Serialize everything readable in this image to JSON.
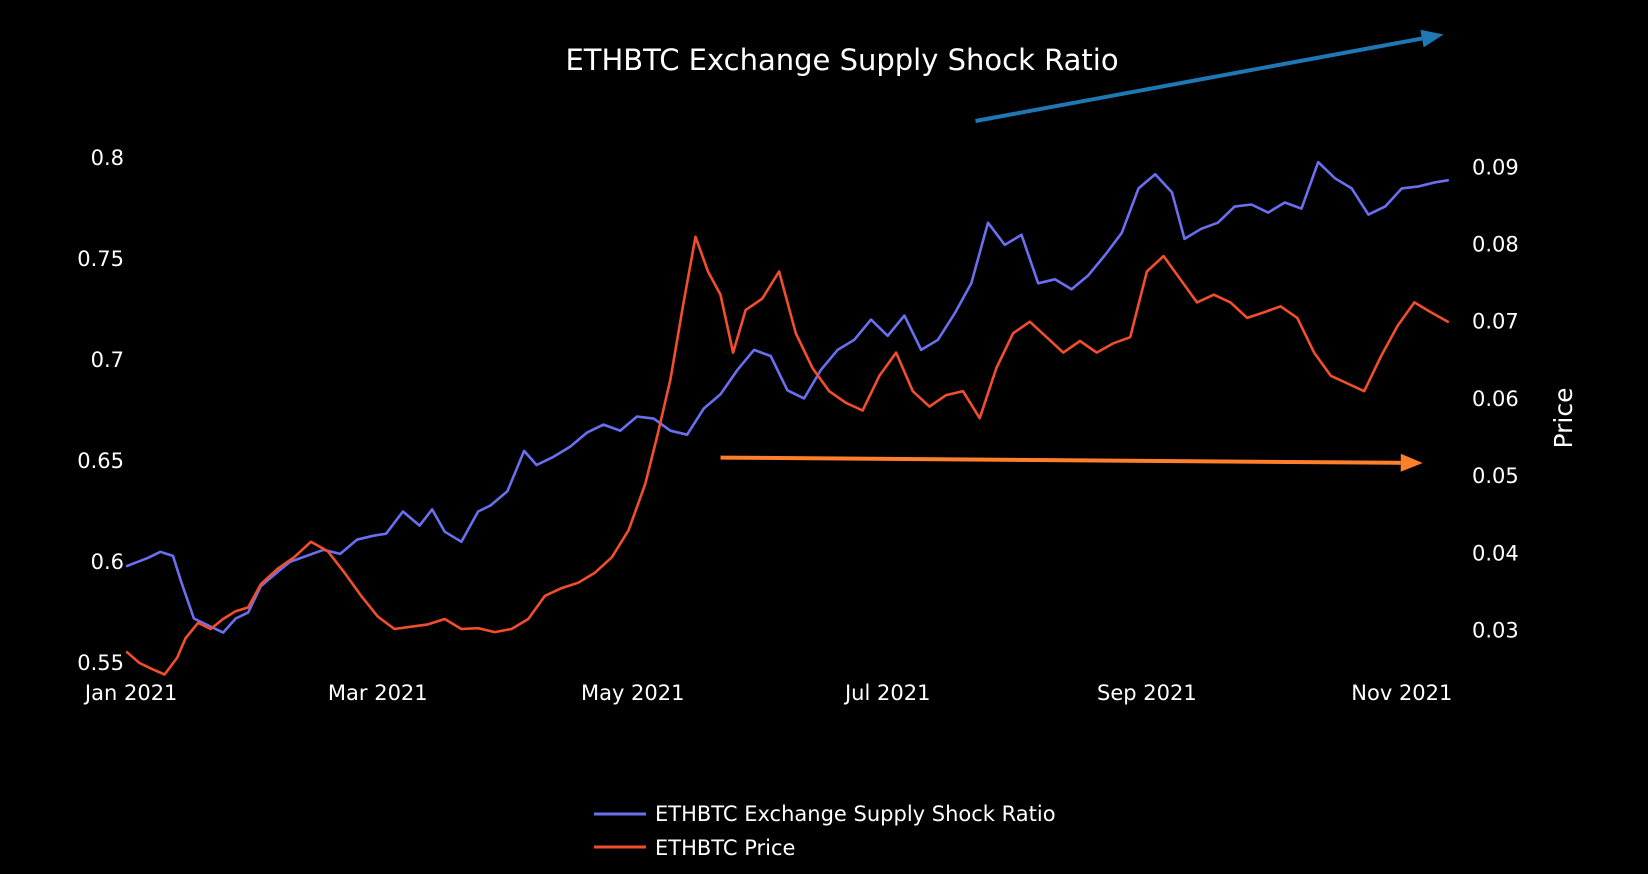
{
  "chart_data": {
    "type": "line",
    "title": "ETHBTC Exchange Supply Shock Ratio",
    "x_ticks": [
      "Jan 2021",
      "Mar 2021",
      "May 2021",
      "Jul 2021",
      "Sep 2021",
      "Nov 2021"
    ],
    "x_tick_dates": [
      "2021-01-01",
      "2021-03-01",
      "2021-05-01",
      "2021-07-01",
      "2021-09-01",
      "2021-11-01"
    ],
    "xlim": [
      "2020-12-31",
      "2021-11-13"
    ],
    "y_left": {
      "label": "",
      "ticks": [
        "0.55",
        "0.6",
        "0.65",
        "0.7",
        "0.75",
        "0.8"
      ],
      "ylim": [
        0.545,
        0.805
      ]
    },
    "y_right": {
      "label": "Price",
      "ticks": [
        "0.03",
        "0.04",
        "0.05",
        "0.06",
        "0.07",
        "0.08",
        "0.09"
      ],
      "ylim": [
        0.0245,
        0.0925
      ]
    },
    "grid": false,
    "legend_position": "bottom-center",
    "series": [
      {
        "name": "ETHBTC Exchange Supply Shock Ratio",
        "axis": "left",
        "color": "#6a6ff0",
        "x": [
          "2020-12-31",
          "2021-01-05",
          "2021-01-08",
          "2021-01-11",
          "2021-01-13",
          "2021-01-16",
          "2021-01-20",
          "2021-01-23",
          "2021-01-26",
          "2021-01-29",
          "2021-02-01",
          "2021-02-05",
          "2021-02-08",
          "2021-02-12",
          "2021-02-16",
          "2021-02-20",
          "2021-02-24",
          "2021-02-28",
          "2021-03-03",
          "2021-03-07",
          "2021-03-11",
          "2021-03-14",
          "2021-03-17",
          "2021-03-21",
          "2021-03-25",
          "2021-03-28",
          "2021-04-01",
          "2021-04-05",
          "2021-04-08",
          "2021-04-12",
          "2021-04-16",
          "2021-04-20",
          "2021-04-24",
          "2021-04-28",
          "2021-05-02",
          "2021-05-06",
          "2021-05-10",
          "2021-05-14",
          "2021-05-18",
          "2021-05-22",
          "2021-05-26",
          "2021-05-30",
          "2021-06-03",
          "2021-06-07",
          "2021-06-11",
          "2021-06-15",
          "2021-06-19",
          "2021-06-23",
          "2021-06-27",
          "2021-07-01",
          "2021-07-05",
          "2021-07-09",
          "2021-07-13",
          "2021-07-17",
          "2021-07-21",
          "2021-07-25",
          "2021-07-29",
          "2021-08-02",
          "2021-08-06",
          "2021-08-10",
          "2021-08-14",
          "2021-08-18",
          "2021-08-22",
          "2021-08-26",
          "2021-08-30",
          "2021-09-03",
          "2021-09-07",
          "2021-09-10",
          "2021-09-14",
          "2021-09-18",
          "2021-09-22",
          "2021-09-26",
          "2021-09-30",
          "2021-10-04",
          "2021-10-08",
          "2021-10-12",
          "2021-10-16",
          "2021-10-20",
          "2021-10-24",
          "2021-10-28",
          "2021-11-01",
          "2021-11-05",
          "2021-11-09",
          "2021-11-12"
        ],
        "values": [
          0.598,
          0.602,
          0.605,
          0.603,
          0.59,
          0.572,
          0.568,
          0.565,
          0.572,
          0.575,
          0.588,
          0.595,
          0.6,
          0.603,
          0.606,
          0.604,
          0.611,
          0.613,
          0.614,
          0.625,
          0.618,
          0.626,
          0.615,
          0.61,
          0.625,
          0.628,
          0.635,
          0.655,
          0.648,
          0.652,
          0.657,
          0.664,
          0.668,
          0.665,
          0.672,
          0.671,
          0.665,
          0.663,
          0.676,
          0.683,
          0.695,
          0.705,
          0.702,
          0.685,
          0.681,
          0.695,
          0.705,
          0.71,
          0.72,
          0.712,
          0.722,
          0.705,
          0.71,
          0.723,
          0.738,
          0.768,
          0.757,
          0.762,
          0.738,
          0.74,
          0.735,
          0.742,
          0.752,
          0.763,
          0.785,
          0.792,
          0.783,
          0.76,
          0.765,
          0.768,
          0.776,
          0.777,
          0.773,
          0.778,
          0.775,
          0.798,
          0.79,
          0.785,
          0.772,
          0.776,
          0.785,
          0.786,
          0.788,
          0.789
        ]
      },
      {
        "name": "ETHBTC Price",
        "axis": "right",
        "color": "#f24e2e",
        "x": [
          "2020-12-31",
          "2021-01-03",
          "2021-01-06",
          "2021-01-09",
          "2021-01-12",
          "2021-01-14",
          "2021-01-17",
          "2021-01-20",
          "2021-01-23",
          "2021-01-26",
          "2021-01-29",
          "2021-02-01",
          "2021-02-05",
          "2021-02-09",
          "2021-02-13",
          "2021-02-17",
          "2021-02-21",
          "2021-02-25",
          "2021-03-01",
          "2021-03-05",
          "2021-03-09",
          "2021-03-13",
          "2021-03-17",
          "2021-03-21",
          "2021-03-25",
          "2021-03-29",
          "2021-04-02",
          "2021-04-06",
          "2021-04-10",
          "2021-04-14",
          "2021-04-18",
          "2021-04-22",
          "2021-04-26",
          "2021-04-30",
          "2021-05-04",
          "2021-05-07",
          "2021-05-10",
          "2021-05-13",
          "2021-05-16",
          "2021-05-19",
          "2021-05-22",
          "2021-05-25",
          "2021-05-28",
          "2021-06-01",
          "2021-06-05",
          "2021-06-09",
          "2021-06-13",
          "2021-06-17",
          "2021-06-21",
          "2021-06-25",
          "2021-06-29",
          "2021-07-03",
          "2021-07-07",
          "2021-07-11",
          "2021-07-15",
          "2021-07-19",
          "2021-07-23",
          "2021-07-27",
          "2021-07-31",
          "2021-08-04",
          "2021-08-08",
          "2021-08-12",
          "2021-08-16",
          "2021-08-20",
          "2021-08-24",
          "2021-08-28",
          "2021-09-01",
          "2021-09-05",
          "2021-09-09",
          "2021-09-13",
          "2021-09-17",
          "2021-09-21",
          "2021-09-25",
          "2021-09-29",
          "2021-10-03",
          "2021-10-07",
          "2021-10-11",
          "2021-10-15",
          "2021-10-19",
          "2021-10-23",
          "2021-10-27",
          "2021-10-31",
          "2021-11-04",
          "2021-11-08",
          "2021-11-12"
        ],
        "values": [
          0.0272,
          0.0258,
          0.025,
          0.0243,
          0.0265,
          0.029,
          0.031,
          0.0302,
          0.0315,
          0.0325,
          0.033,
          0.036,
          0.038,
          0.0395,
          0.0415,
          0.0403,
          0.0375,
          0.0345,
          0.0318,
          0.0302,
          0.0305,
          0.0308,
          0.0315,
          0.0302,
          0.0303,
          0.0298,
          0.0302,
          0.0315,
          0.0345,
          0.0355,
          0.0362,
          0.0375,
          0.0395,
          0.043,
          0.049,
          0.0555,
          0.0625,
          0.072,
          0.081,
          0.0765,
          0.0735,
          0.066,
          0.0715,
          0.073,
          0.0765,
          0.0685,
          0.064,
          0.061,
          0.0595,
          0.0585,
          0.063,
          0.066,
          0.061,
          0.059,
          0.0605,
          0.061,
          0.0575,
          0.064,
          0.0685,
          0.07,
          0.068,
          0.066,
          0.0675,
          0.066,
          0.0672,
          0.068,
          0.0765,
          0.0785,
          0.0755,
          0.0725,
          0.0735,
          0.0725,
          0.0705,
          0.0712,
          0.072,
          0.0705,
          0.066,
          0.063,
          0.062,
          0.061,
          0.0655,
          0.0695,
          0.0725,
          0.0712,
          0.07
        ]
      }
    ],
    "annotations": [
      {
        "type": "arrow",
        "color": "#1f77b4",
        "from": [
          "2021-07-22",
          0.096
        ],
        "to": [
          "2021-11-11",
          0.1072
        ],
        "axis": "right"
      },
      {
        "type": "arrow",
        "color": "#ff7f2a",
        "from": [
          "2021-05-22",
          0.0524
        ],
        "to": [
          "2021-11-06",
          0.0517
        ],
        "axis": "right"
      }
    ]
  }
}
